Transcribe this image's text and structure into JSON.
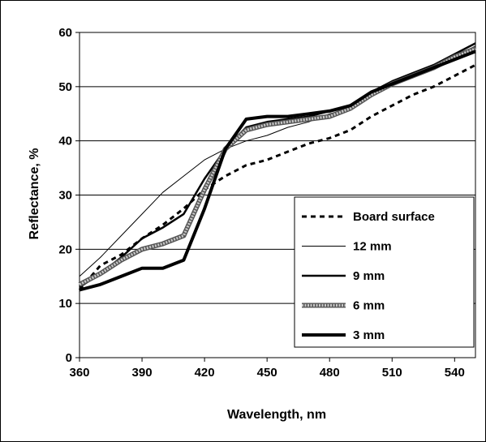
{
  "chart_data": {
    "type": "line",
    "xlabel": "Wavelength, nm",
    "ylabel": "Reflectance, %",
    "xlim": [
      360,
      550
    ],
    "ylim": [
      0,
      60
    ],
    "x_ticks": [
      "360",
      "390",
      "420",
      "450",
      "480",
      "510",
      "540"
    ],
    "y_ticks": [
      "0",
      "10",
      "20",
      "30",
      "40",
      "50",
      "60"
    ],
    "grid": "horizontal",
    "legend_position": "bottom-right",
    "x": [
      360,
      370,
      380,
      390,
      400,
      410,
      420,
      430,
      440,
      450,
      460,
      470,
      480,
      490,
      500,
      510,
      520,
      530,
      540,
      550
    ],
    "series": [
      {
        "name": "Board surface",
        "style": "dashed",
        "color": "#000000",
        "values": [
          12.5,
          17.0,
          19.0,
          22.0,
          24.5,
          27.5,
          31.0,
          33.5,
          35.5,
          36.5,
          38.0,
          39.5,
          40.5,
          42.0,
          44.5,
          46.5,
          48.5,
          50.0,
          52.0,
          54.0
        ]
      },
      {
        "name": "12 mm",
        "style": "thin",
        "color": "#000000",
        "values": [
          15.0,
          18.5,
          22.5,
          26.5,
          30.5,
          33.5,
          36.5,
          38.5,
          40.0,
          41.0,
          42.5,
          43.5,
          45.0,
          46.0,
          48.5,
          50.5,
          52.0,
          53.5,
          55.5,
          57.5
        ]
      },
      {
        "name": "9 mm",
        "style": "medium",
        "color": "#000000",
        "values": [
          13.0,
          15.5,
          18.5,
          22.0,
          24.0,
          26.5,
          33.0,
          38.5,
          42.5,
          43.5,
          44.0,
          44.5,
          45.5,
          46.5,
          49.0,
          51.0,
          52.5,
          54.0,
          56.0,
          58.0
        ]
      },
      {
        "name": "6 mm",
        "style": "gray-thick",
        "color": "#999999",
        "values": [
          13.5,
          15.5,
          18.0,
          20.0,
          21.0,
          22.5,
          31.0,
          38.5,
          42.0,
          43.0,
          43.5,
          44.0,
          44.5,
          46.0,
          48.5,
          50.5,
          52.0,
          53.5,
          55.5,
          57.0
        ]
      },
      {
        "name": "3 mm",
        "style": "thick",
        "color": "#000000",
        "values": [
          12.5,
          13.5,
          15.0,
          16.5,
          16.5,
          18.0,
          27.5,
          38.5,
          44.0,
          44.5,
          44.5,
          45.0,
          45.5,
          46.5,
          49.0,
          50.5,
          52.0,
          53.5,
          55.0,
          56.5
        ]
      }
    ]
  }
}
